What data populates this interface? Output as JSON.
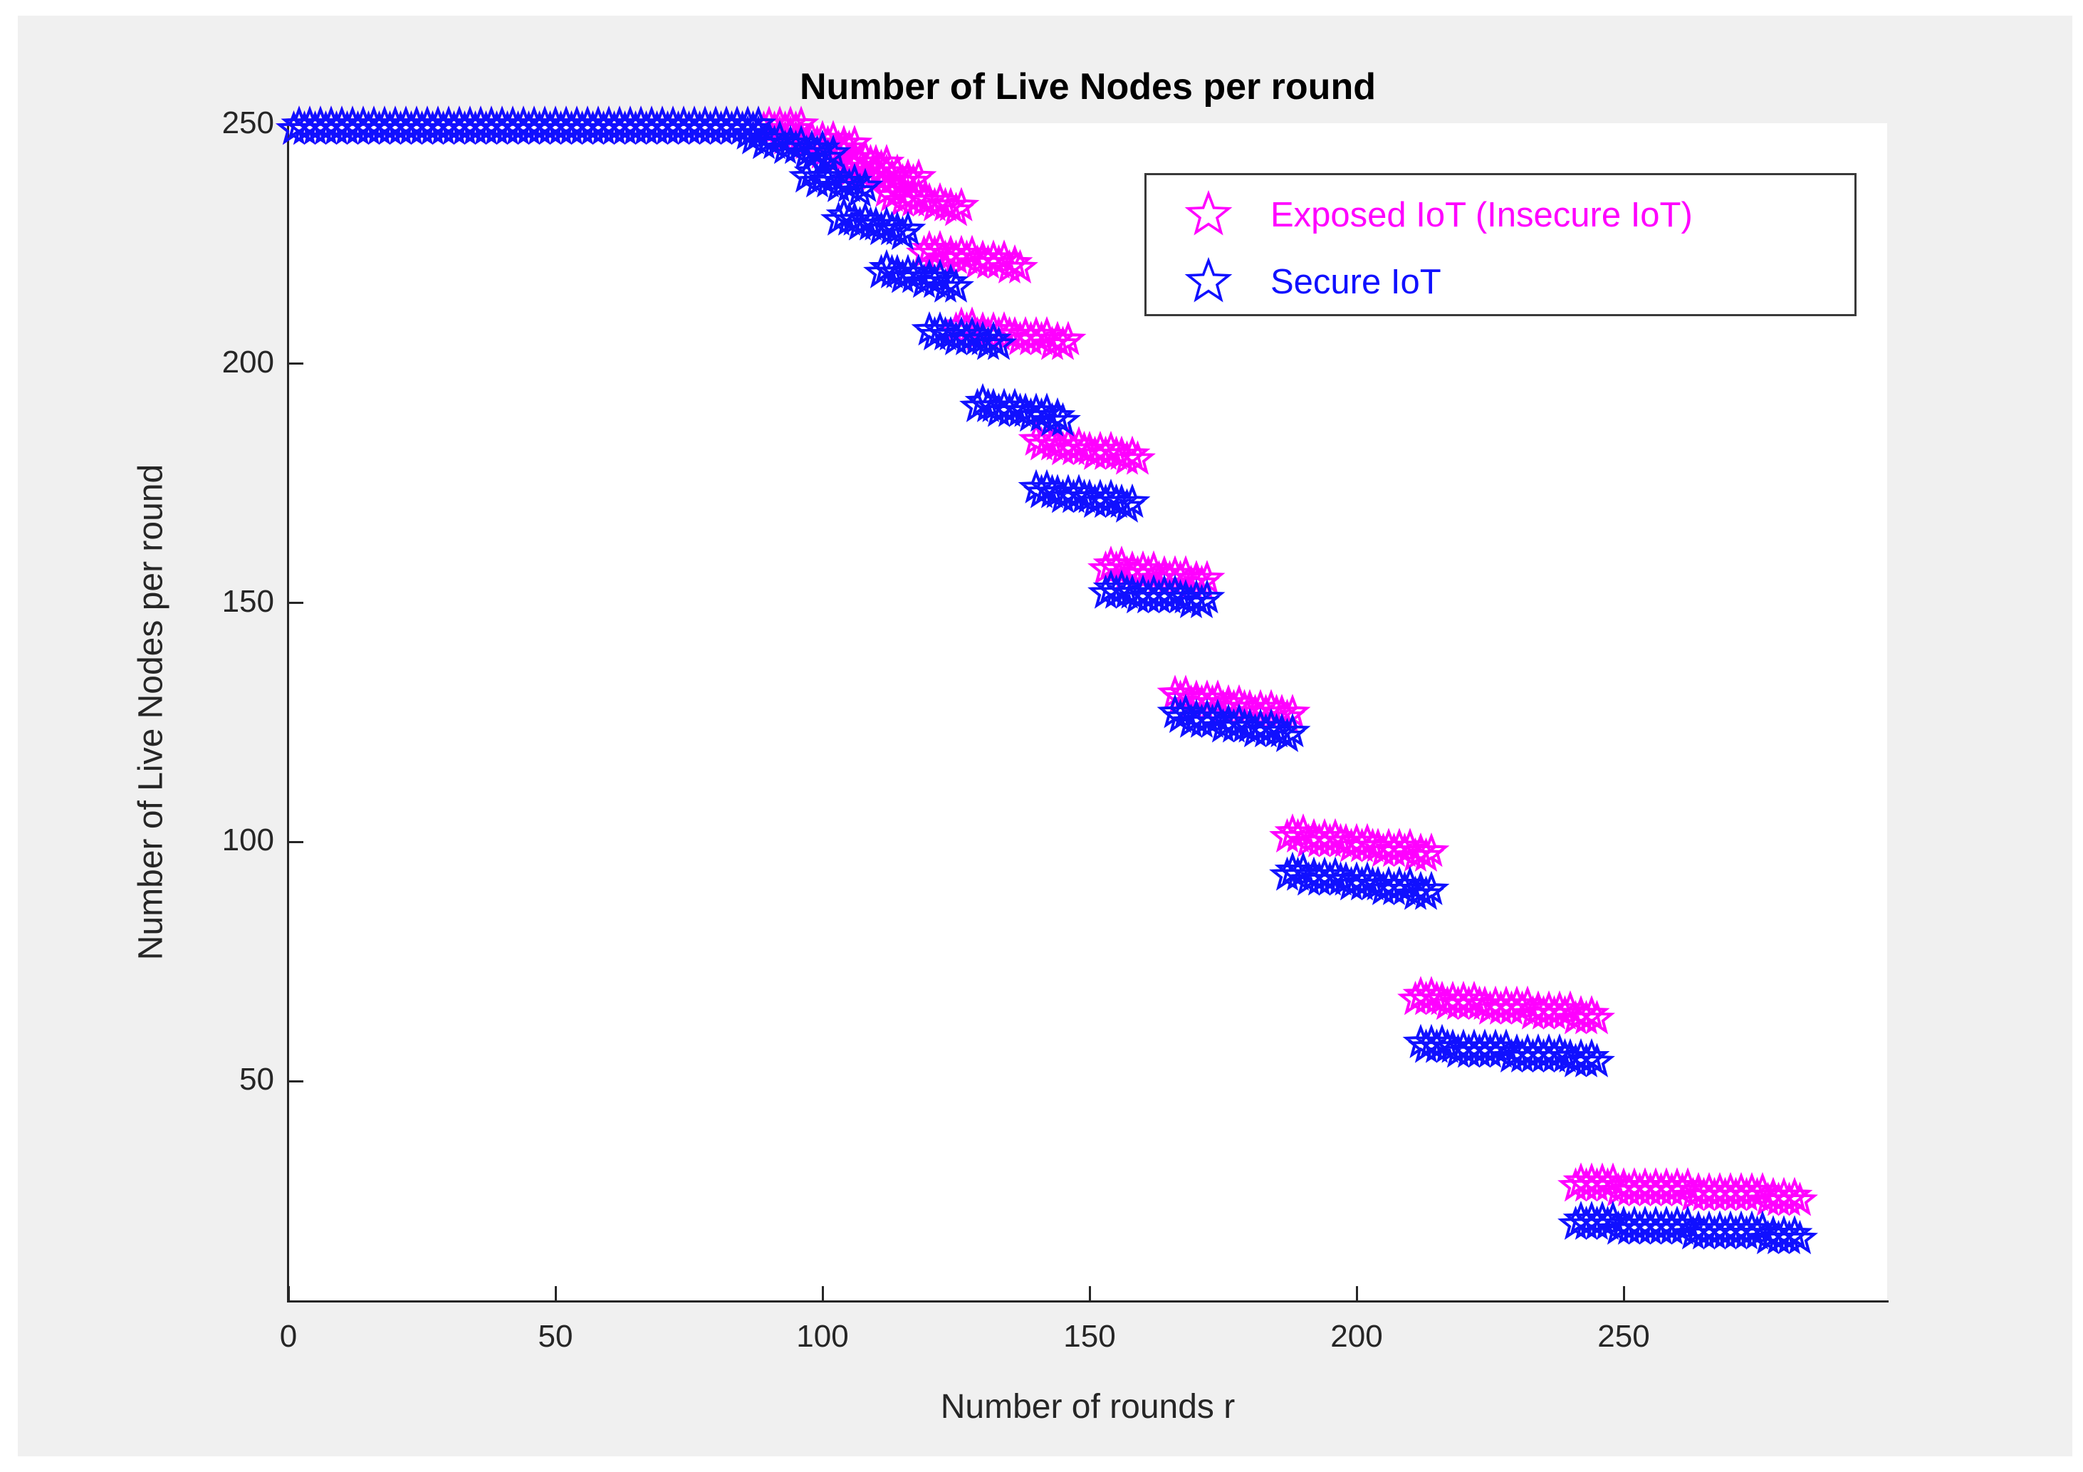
{
  "figure": {
    "title": "Number of Live Nodes per round",
    "x_label": "Number of rounds r",
    "y_label": "Number of Live Nodes per round",
    "background_color": "#f0f0f0",
    "plot_background_color": "#ffffff",
    "axis_color": "#262626"
  },
  "axes": {
    "x_ticks": [
      0,
      50,
      100,
      150,
      200,
      250
    ],
    "y_ticks": [
      50,
      100,
      150,
      200,
      250
    ],
    "xlim": [
      0,
      300
    ],
    "ylim": [
      4,
      250
    ],
    "grid": false
  },
  "legend": {
    "position": "upper right",
    "items": [
      {
        "label": "Exposed IoT (Insecure IoT)",
        "color": "#ff00ff",
        "marker": "pentagram-outline"
      },
      {
        "label": "Secure IoT",
        "color": "#1010ff",
        "marker": "pentagram-outline"
      }
    ]
  },
  "chart_data": {
    "type": "scatter",
    "title": "Number of Live Nodes per round",
    "xlabel": "Number of rounds r",
    "ylabel": "Number of Live Nodes per round",
    "xlim": [
      0,
      300
    ],
    "ylim": [
      4,
      250
    ],
    "marker": "pentagram",
    "legend_position": "upper right",
    "series": [
      {
        "name": "Exposed IoT (Insecure IoT)",
        "color": "#ff00ff",
        "runs_format": [
          "round_start",
          "round_end",
          "value_start",
          "value_end"
        ],
        "runs": [
          [
            1,
            96,
            250,
            250
          ],
          [
            92,
            106,
            248,
            246
          ],
          [
            97,
            112,
            245,
            242
          ],
          [
            104,
            118,
            241,
            239
          ],
          [
            112,
            126,
            236,
            233
          ],
          [
            119,
            137,
            224,
            221
          ],
          [
            125,
            146,
            208,
            205
          ],
          [
            140,
            159,
            184,
            181
          ],
          [
            153,
            172,
            158,
            155
          ],
          [
            166,
            188,
            131,
            127
          ],
          [
            187,
            214,
            102,
            98
          ],
          [
            211,
            245,
            68,
            64
          ],
          [
            241,
            283,
            29,
            26
          ]
        ]
      },
      {
        "name": "Secure IoT",
        "color": "#1010ff",
        "runs_format": [
          "round_start",
          "round_end",
          "value_start",
          "value_end"
        ],
        "runs": [
          [
            1,
            88,
            250,
            250
          ],
          [
            86,
            102,
            248,
            244
          ],
          [
            97,
            108,
            240,
            237
          ],
          [
            103,
            116,
            231,
            228
          ],
          [
            111,
            125,
            220,
            217
          ],
          [
            120,
            133,
            207,
            205
          ],
          [
            129,
            145,
            192,
            189
          ],
          [
            140,
            158,
            174,
            171
          ],
          [
            153,
            172,
            153,
            151
          ],
          [
            166,
            188,
            127,
            123
          ],
          [
            187,
            214,
            94,
            90
          ],
          [
            212,
            245,
            58,
            55
          ],
          [
            241,
            283,
            21,
            18
          ]
        ]
      }
    ]
  }
}
